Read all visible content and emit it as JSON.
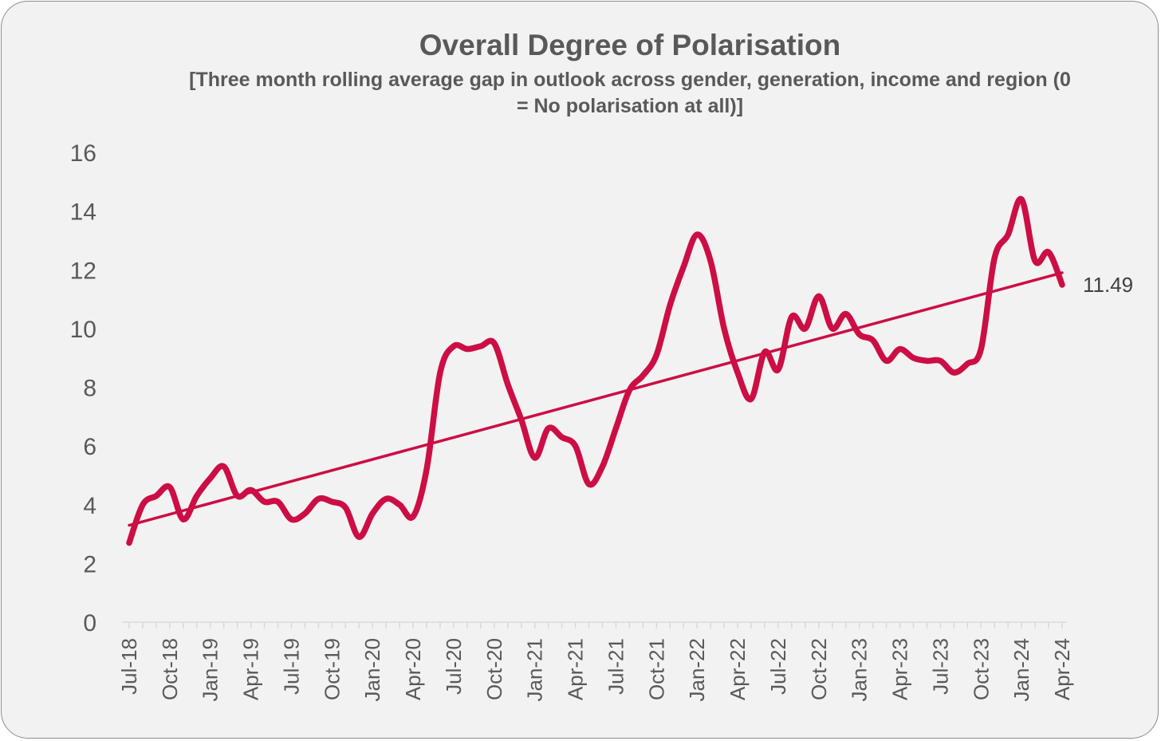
{
  "chart_data": {
    "type": "line",
    "title": "Overall Degree of Polarisation",
    "subtitle": "[Three month rolling average gap in outlook across gender, generation, income and region (0 = No polarisation at all)]",
    "xlabel": "",
    "ylabel": "",
    "ylim": [
      0,
      16
    ],
    "yticks": [
      "0",
      "2",
      "4",
      "6",
      "8",
      "10",
      "12",
      "14",
      "16"
    ],
    "x_tick_labels": [
      "Jul-18",
      "Oct-18",
      "Jan-19",
      "Apr-19",
      "Jul-19",
      "Oct-19",
      "Jan-20",
      "Apr-20",
      "Jul-20",
      "Oct-20",
      "Jan-21",
      "Apr-21",
      "Jul-21",
      "Oct-21",
      "Jan-22",
      "Apr-22",
      "Jul-22",
      "Oct-22",
      "Jan-23",
      "Apr-23",
      "Jul-23",
      "Oct-23",
      "Jan-24",
      "Apr-24"
    ],
    "x_start": "Jul-18",
    "x_end": "Apr-24",
    "series": [
      {
        "name": "Polarisation",
        "color": "#cc0e45",
        "values": [
          2.7,
          4.0,
          4.3,
          4.6,
          3.5,
          4.3,
          4.9,
          5.3,
          4.3,
          4.5,
          4.1,
          4.1,
          3.5,
          3.7,
          4.2,
          4.1,
          3.9,
          2.9,
          3.7,
          4.2,
          4.0,
          3.6,
          5.2,
          8.5,
          9.4,
          9.3,
          9.4,
          9.5,
          8.1,
          6.9,
          5.6,
          6.6,
          6.3,
          6.0,
          4.7,
          5.3,
          6.6,
          7.9,
          8.4,
          9.1,
          10.8,
          12.1,
          13.2,
          12.3,
          10.0,
          8.5,
          7.6,
          9.2,
          8.6,
          10.4,
          10.0,
          11.1,
          10.0,
          10.5,
          9.8,
          9.6,
          8.9,
          9.3,
          9.0,
          8.9,
          8.9,
          8.5,
          8.8,
          9.3,
          12.4,
          13.2,
          14.4,
          12.3,
          12.6,
          11.49
        ]
      }
    ],
    "trendline": {
      "start": 3.3,
      "end": 11.9
    },
    "last_value_label": "11.49"
  }
}
